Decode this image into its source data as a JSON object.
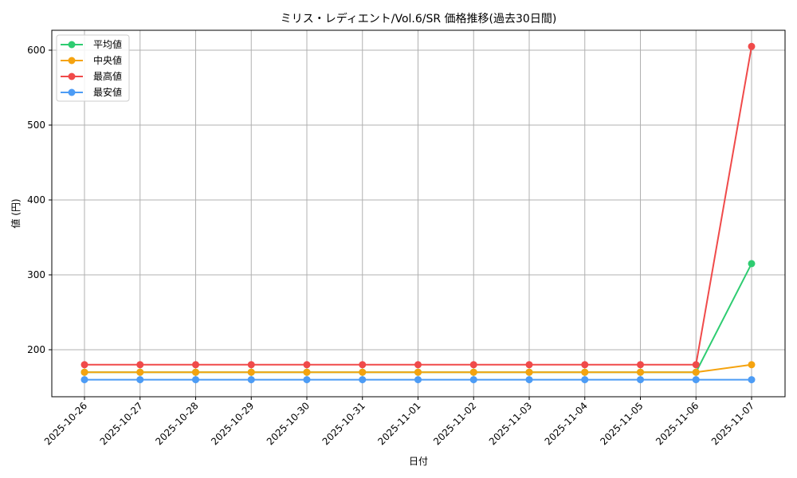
{
  "chart_data": {
    "type": "line",
    "title": "ミリス・レディエント/Vol.6/SR 価格推移(過去30日間)",
    "xlabel": "日付",
    "ylabel": "値 (円)",
    "ylim": [
      137,
      627
    ],
    "yticks": [
      200,
      300,
      400,
      500,
      600
    ],
    "grid": true,
    "legend_position": "upper left",
    "categories": [
      "2025-10-26",
      "2025-10-27",
      "2025-10-28",
      "2025-10-29",
      "2025-10-30",
      "2025-10-31",
      "2025-11-01",
      "2025-11-02",
      "2025-11-03",
      "2025-11-04",
      "2025-11-05",
      "2025-11-06",
      "2025-11-07"
    ],
    "series": [
      {
        "name": "平均値",
        "color": "#2ecc71",
        "values": [
          170,
          170,
          170,
          170,
          170,
          170,
          170,
          170,
          170,
          170,
          170,
          170,
          315
        ]
      },
      {
        "name": "中央値",
        "color": "#f5a30f",
        "values": [
          170,
          170,
          170,
          170,
          170,
          170,
          170,
          170,
          170,
          170,
          170,
          170,
          180
        ]
      },
      {
        "name": "最高値",
        "color": "#f04a4a",
        "values": [
          180,
          180,
          180,
          180,
          180,
          180,
          180,
          180,
          180,
          180,
          180,
          180,
          605
        ]
      },
      {
        "name": "最安値",
        "color": "#4d9cf5",
        "values": [
          160,
          160,
          160,
          160,
          160,
          160,
          160,
          160,
          160,
          160,
          160,
          160,
          160
        ]
      }
    ]
  }
}
